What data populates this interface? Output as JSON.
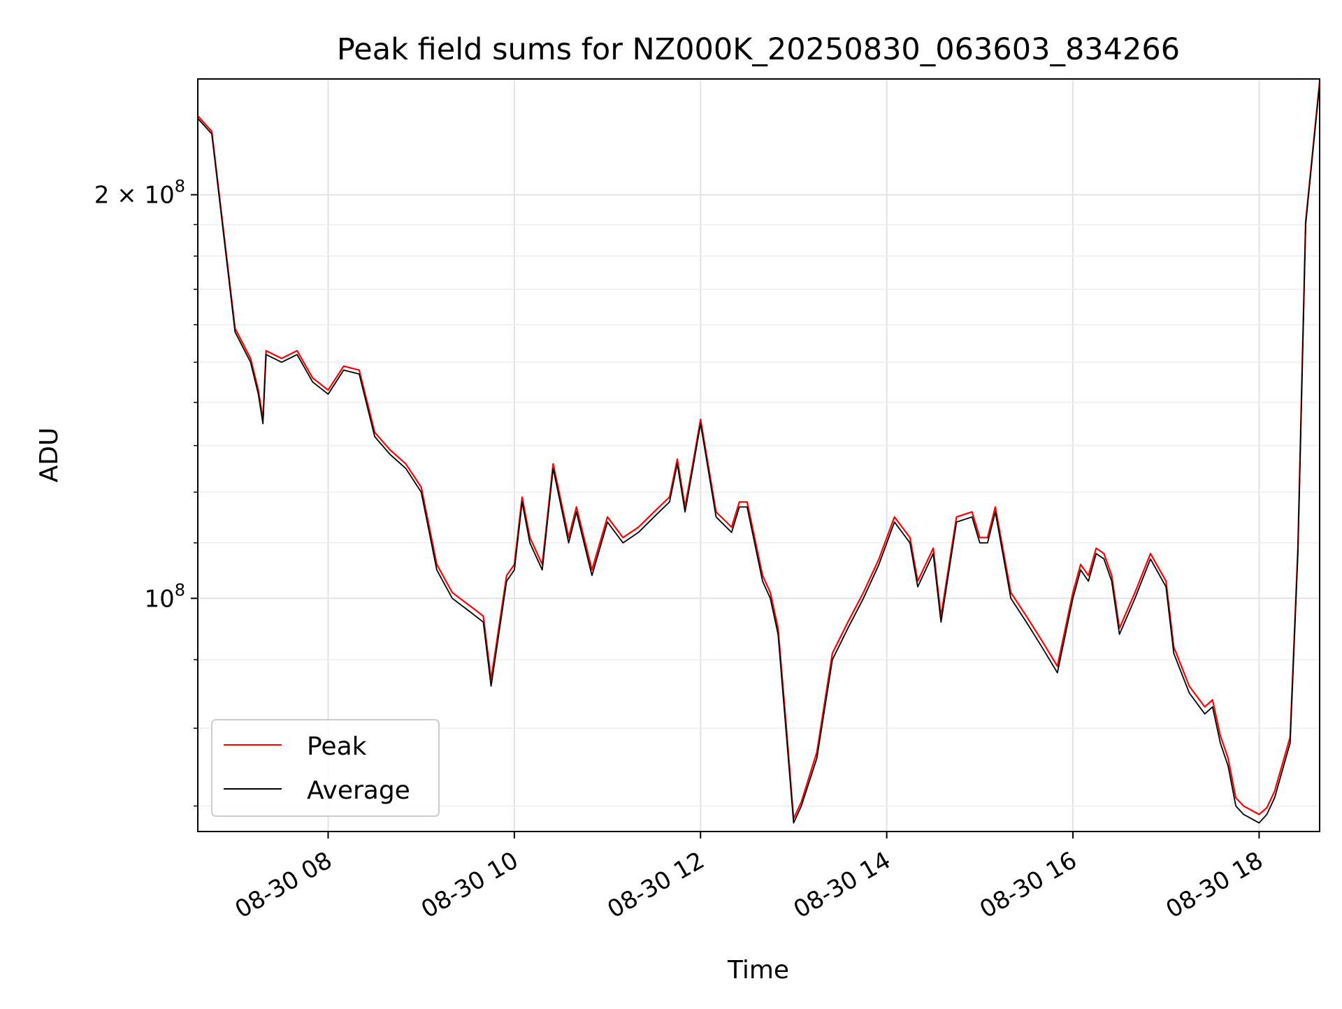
{
  "chart_data": {
    "type": "line",
    "title": "Peak field sums for NZ000K_20250830_063603_834266",
    "xlabel": "Time",
    "ylabel": "ADU",
    "x_range": [
      "2025-08-30 06:36",
      "2025-08-30 18:39"
    ],
    "y_range": [
      67000000,
      244000000
    ],
    "y_scale": "log",
    "grid": true,
    "legend_position": "lower-left",
    "x_ticks": [
      "08-30 08",
      "08-30 10",
      "08-30 12",
      "08-30 14",
      "08-30 16",
      "08-30 18"
    ],
    "y_ticks": [
      "2 × 10^8",
      "10^8"
    ],
    "y_tick_labels": [
      {
        "mantissa": "2",
        "times": "×",
        "base": "10",
        "exponent": "8"
      },
      {
        "mantissa": "",
        "times": "",
        "base": "10",
        "exponent": "8"
      }
    ],
    "legend": [
      "Peak",
      "Average"
    ],
    "series": [
      {
        "name": "Peak",
        "color": "#ff0000"
      },
      {
        "name": "Average",
        "color": "#000000"
      }
    ],
    "x": [
      "2025-08-30 06:36",
      "2025-08-30 06:45",
      "2025-08-30 07:00",
      "2025-08-30 07:10",
      "2025-08-30 07:15",
      "2025-08-30 07:18",
      "2025-08-30 07:20",
      "2025-08-30 07:30",
      "2025-08-30 07:40",
      "2025-08-30 07:50",
      "2025-08-30 08:00",
      "2025-08-30 08:10",
      "2025-08-30 08:20",
      "2025-08-30 08:30",
      "2025-08-30 08:40",
      "2025-08-30 08:50",
      "2025-08-30 09:00",
      "2025-08-30 09:10",
      "2025-08-30 09:20",
      "2025-08-30 09:30",
      "2025-08-30 09:35",
      "2025-08-30 09:40",
      "2025-08-30 09:45",
      "2025-08-30 09:55",
      "2025-08-30 10:00",
      "2025-08-30 10:05",
      "2025-08-30 10:10",
      "2025-08-30 10:18",
      "2025-08-30 10:25",
      "2025-08-30 10:35",
      "2025-08-30 10:40",
      "2025-08-30 10:50",
      "2025-08-30 11:00",
      "2025-08-30 11:10",
      "2025-08-30 11:20",
      "2025-08-30 11:30",
      "2025-08-30 11:40",
      "2025-08-30 11:45",
      "2025-08-30 11:50",
      "2025-08-30 11:55",
      "2025-08-30 12:00",
      "2025-08-30 12:10",
      "2025-08-30 12:20",
      "2025-08-30 12:25",
      "2025-08-30 12:30",
      "2025-08-30 12:40",
      "2025-08-30 12:45",
      "2025-08-30 12:50",
      "2025-08-30 12:55",
      "2025-08-30 13:00",
      "2025-08-30 13:05",
      "2025-08-30 13:15",
      "2025-08-30 13:25",
      "2025-08-30 13:35",
      "2025-08-30 13:45",
      "2025-08-30 13:55",
      "2025-08-30 14:05",
      "2025-08-30 14:15",
      "2025-08-30 14:20",
      "2025-08-30 14:30",
      "2025-08-30 14:35",
      "2025-08-30 14:45",
      "2025-08-30 14:55",
      "2025-08-30 15:00",
      "2025-08-30 15:05",
      "2025-08-30 15:10",
      "2025-08-30 15:20",
      "2025-08-30 15:30",
      "2025-08-30 15:40",
      "2025-08-30 15:50",
      "2025-08-30 16:00",
      "2025-08-30 16:05",
      "2025-08-30 16:10",
      "2025-08-30 16:15",
      "2025-08-30 16:20",
      "2025-08-30 16:25",
      "2025-08-30 16:30",
      "2025-08-30 16:40",
      "2025-08-30 16:50",
      "2025-08-30 17:00",
      "2025-08-30 17:05",
      "2025-08-30 17:15",
      "2025-08-30 17:25",
      "2025-08-30 17:30",
      "2025-08-30 17:35",
      "2025-08-30 17:40",
      "2025-08-30 17:45",
      "2025-08-30 17:50",
      "2025-08-30 17:55",
      "2025-08-30 18:00",
      "2025-08-30 18:05",
      "2025-08-30 18:10",
      "2025-08-30 18:20",
      "2025-08-30 18:25",
      "2025-08-30 18:30",
      "2025-08-30 18:39"
    ],
    "values_average": [
      228000000,
      222000000,
      158000000,
      150000000,
      142000000,
      135000000,
      152000000,
      150000000,
      152000000,
      145000000,
      142000000,
      148000000,
      147000000,
      132000000,
      128000000,
      125000000,
      120000000,
      105000000,
      100000000,
      98000000,
      97000000,
      96000000,
      86000000,
      103000000,
      105000000,
      118000000,
      110000000,
      105000000,
      125000000,
      110000000,
      116000000,
      104000000,
      114000000,
      110000000,
      112000000,
      115000000,
      118000000,
      126000000,
      116000000,
      125000000,
      135000000,
      115000000,
      112000000,
      117000000,
      117000000,
      103000000,
      100000000,
      94000000,
      80000000,
      68000000,
      70000000,
      76000000,
      90000000,
      95000000,
      100000000,
      106000000,
      114000000,
      110000000,
      102000000,
      108000000,
      96000000,
      114000000,
      115000000,
      110000000,
      110000000,
      116000000,
      100000000,
      96000000,
      92000000,
      88000000,
      100000000,
      105000000,
      103000000,
      108000000,
      107000000,
      103000000,
      94000000,
      100000000,
      107000000,
      102000000,
      91000000,
      85000000,
      82000000,
      83000000,
      78000000,
      75000000,
      70000000,
      69000000,
      68500000,
      68000000,
      69000000,
      71000000,
      78000000,
      108000000,
      190000000,
      242000000
    ],
    "values_peak": [
      229000000,
      223000000,
      159000000,
      151000000,
      143000000,
      136000000,
      153000000,
      151000000,
      153000000,
      146000000,
      143000000,
      149000000,
      148000000,
      133000000,
      129000000,
      126000000,
      121000000,
      106000000,
      101000000,
      99000000,
      98000000,
      97000000,
      87000000,
      104000000,
      106000000,
      119000000,
      111000000,
      106000000,
      126000000,
      111000000,
      117000000,
      105000000,
      115000000,
      111000000,
      113000000,
      116000000,
      119000000,
      127000000,
      117000000,
      126000000,
      136000000,
      116000000,
      113000000,
      118000000,
      118000000,
      104000000,
      101000000,
      95000000,
      81000000,
      68500000,
      70500000,
      76800000,
      91000000,
      96000000,
      101000000,
      107000000,
      115000000,
      111000000,
      103000000,
      109000000,
      97000000,
      115000000,
      116000000,
      111000000,
      111000000,
      117000000,
      101000000,
      97000000,
      93000000,
      89000000,
      101000000,
      106000000,
      104000000,
      109000000,
      108000000,
      104000000,
      95000000,
      101000000,
      108000000,
      103000000,
      92000000,
      86000000,
      83000000,
      84000000,
      79000000,
      76000000,
      71000000,
      70000000,
      69500000,
      69000000,
      69800000,
      71800000,
      78800000,
      109000000,
      191000000,
      243000000
    ]
  }
}
